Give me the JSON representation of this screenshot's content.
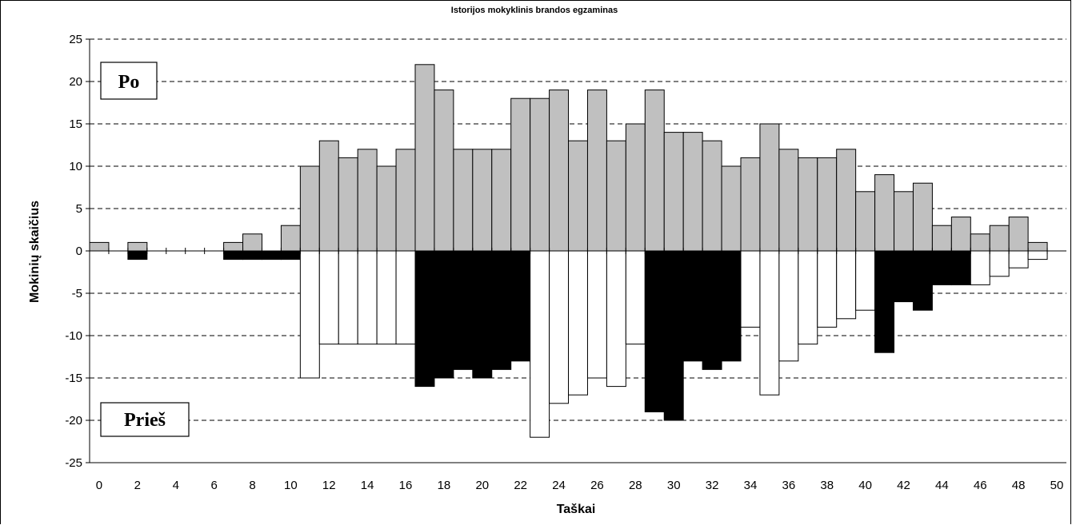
{
  "chart_data": {
    "type": "bar",
    "title": "Istorijos mokyklinis brandos egzaminas",
    "xlabel": "Taškai",
    "ylabel": "Mokinių skaičius",
    "xlim": [
      -0.5,
      50.5
    ],
    "ylim": [
      -25,
      25
    ],
    "yticks": [
      25,
      20,
      15,
      10,
      5,
      0,
      -5,
      -10,
      -15,
      -20,
      -25
    ],
    "xticks": [
      0,
      2,
      4,
      6,
      8,
      10,
      12,
      14,
      16,
      18,
      20,
      22,
      24,
      26,
      28,
      30,
      32,
      34,
      36,
      38,
      40,
      42,
      44,
      46,
      48,
      50
    ],
    "grid": "horizontal dashed",
    "annotations": [
      "Po",
      "Prieš"
    ],
    "x": [
      0,
      1,
      2,
      3,
      4,
      5,
      6,
      7,
      8,
      9,
      10,
      11,
      12,
      13,
      14,
      15,
      16,
      17,
      18,
      19,
      20,
      21,
      22,
      23,
      24,
      25,
      26,
      27,
      28,
      29,
      30,
      31,
      32,
      33,
      34,
      35,
      36,
      37,
      38,
      39,
      40,
      41,
      42,
      43,
      44,
      45,
      46,
      47,
      48,
      49
    ],
    "series": [
      {
        "name": "Po",
        "color": "#c0c0c0",
        "values": [
          1,
          0,
          1,
          0,
          0,
          0,
          0,
          1,
          2,
          0,
          3,
          10,
          13,
          11,
          12,
          10,
          12,
          22,
          19,
          12,
          12,
          12,
          18,
          18,
          19,
          13,
          19,
          13,
          15,
          19,
          14,
          14,
          13,
          10,
          11,
          15,
          12,
          11,
          11,
          12,
          7,
          9,
          7,
          8,
          3,
          4,
          2,
          3,
          4,
          1
        ]
      },
      {
        "name": "Prieš",
        "values": [
          0,
          0,
          -1,
          0,
          0,
          0,
          0,
          -1,
          -1,
          -1,
          -1,
          -15,
          -11,
          -11,
          -11,
          -11,
          -11,
          -16,
          -15,
          -14,
          -15,
          -14,
          -13,
          -22,
          -18,
          -17,
          -15,
          -16,
          -11,
          -19,
          -20,
          -13,
          -14,
          -13,
          -9,
          -17,
          -13,
          -11,
          -9,
          -8,
          -7,
          -12,
          -6,
          -7,
          -4,
          -4,
          -4,
          -3,
          -2,
          -1
        ],
        "fill": [
          "#ffffff",
          "#ffffff",
          "#000000",
          "#ffffff",
          "#ffffff",
          "#ffffff",
          "#ffffff",
          "#000000",
          "#000000",
          "#000000",
          "#000000",
          "#ffffff",
          "#ffffff",
          "#ffffff",
          "#ffffff",
          "#ffffff",
          "#ffffff",
          "#000000",
          "#000000",
          "#000000",
          "#000000",
          "#000000",
          "#000000",
          "#ffffff",
          "#ffffff",
          "#ffffff",
          "#ffffff",
          "#ffffff",
          "#ffffff",
          "#000000",
          "#000000",
          "#000000",
          "#000000",
          "#000000",
          "#ffffff",
          "#ffffff",
          "#ffffff",
          "#ffffff",
          "#ffffff",
          "#ffffff",
          "#ffffff",
          "#000000",
          "#000000",
          "#000000",
          "#000000",
          "#000000",
          "#ffffff",
          "#ffffff",
          "#ffffff",
          "#ffffff"
        ]
      }
    ]
  }
}
